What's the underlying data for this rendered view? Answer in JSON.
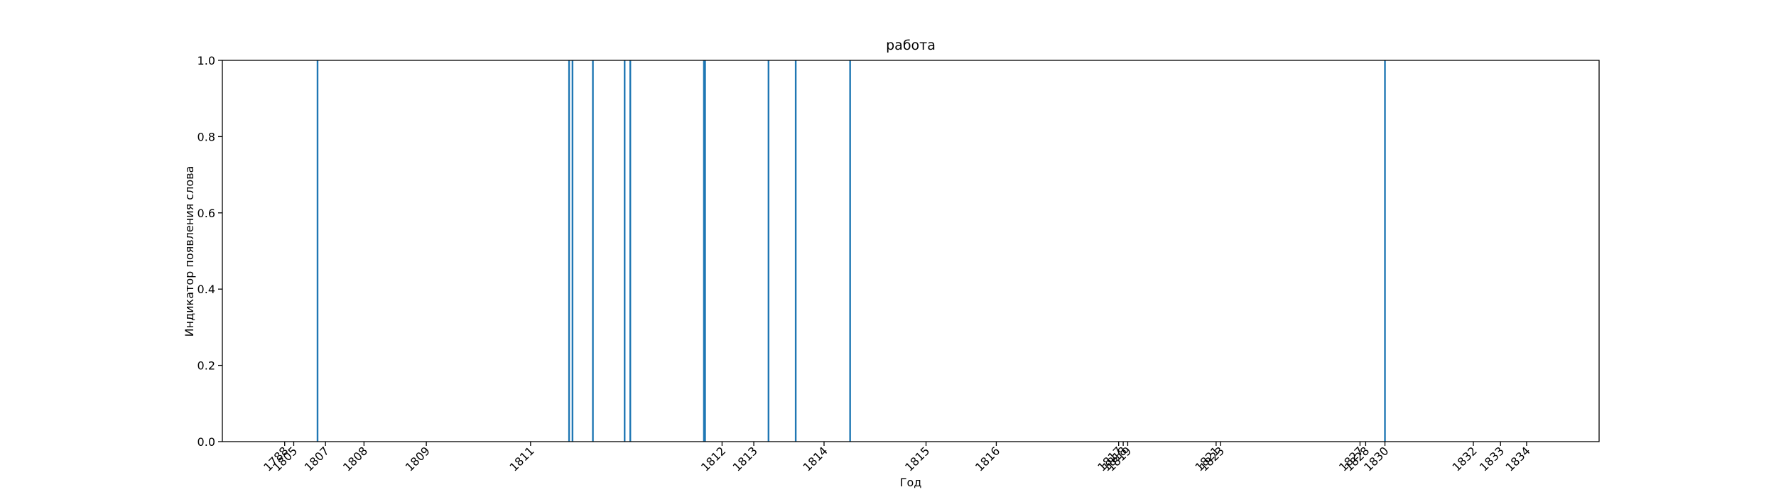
{
  "chart_data": {
    "type": "vlines",
    "title": "работа",
    "x_label": "Год",
    "y_label": "Индикатор появления слова",
    "x": [
      84,
      306,
      309,
      327,
      355,
      360,
      425,
      426,
      482,
      506,
      554,
      1026
    ],
    "values": [
      1,
      1,
      1,
      1,
      1,
      1,
      1,
      1,
      1,
      1,
      1,
      1
    ],
    "color": "#1f77b4",
    "xlim": [
      0,
      1215
    ],
    "ylim": [
      0,
      1
    ],
    "xticks": [
      {
        "value": 55,
        "label": "1788"
      },
      {
        "value": 63,
        "label": "1805"
      },
      {
        "value": 91,
        "label": "1807"
      },
      {
        "value": 125,
        "label": "1808"
      },
      {
        "value": 180,
        "label": "1809"
      },
      {
        "value": 272,
        "label": "1811"
      },
      {
        "value": 441,
        "label": "1812"
      },
      {
        "value": 469,
        "label": "1813"
      },
      {
        "value": 531,
        "label": "1814"
      },
      {
        "value": 621,
        "label": "1815"
      },
      {
        "value": 683,
        "label": "1816"
      },
      {
        "value": 791,
        "label": "1817"
      },
      {
        "value": 795,
        "label": "1818"
      },
      {
        "value": 799,
        "label": "1819"
      },
      {
        "value": 877,
        "label": "1821"
      },
      {
        "value": 881,
        "label": "1823"
      },
      {
        "value": 1004,
        "label": "1827"
      },
      {
        "value": 1009,
        "label": "1828"
      },
      {
        "value": 1026,
        "label": "1830"
      },
      {
        "value": 1104,
        "label": "1832"
      },
      {
        "value": 1128,
        "label": "1833"
      },
      {
        "value": 1151,
        "label": "1834"
      }
    ],
    "yticks": [
      {
        "value": 0,
        "label": "0.0"
      },
      {
        "value": 0.2,
        "label": "0.2"
      },
      {
        "value": 0.4,
        "label": "0.4"
      },
      {
        "value": 0.6,
        "label": "0.6"
      },
      {
        "value": 0.8,
        "label": "0.8"
      },
      {
        "value": 1,
        "label": "1.0"
      }
    ]
  }
}
